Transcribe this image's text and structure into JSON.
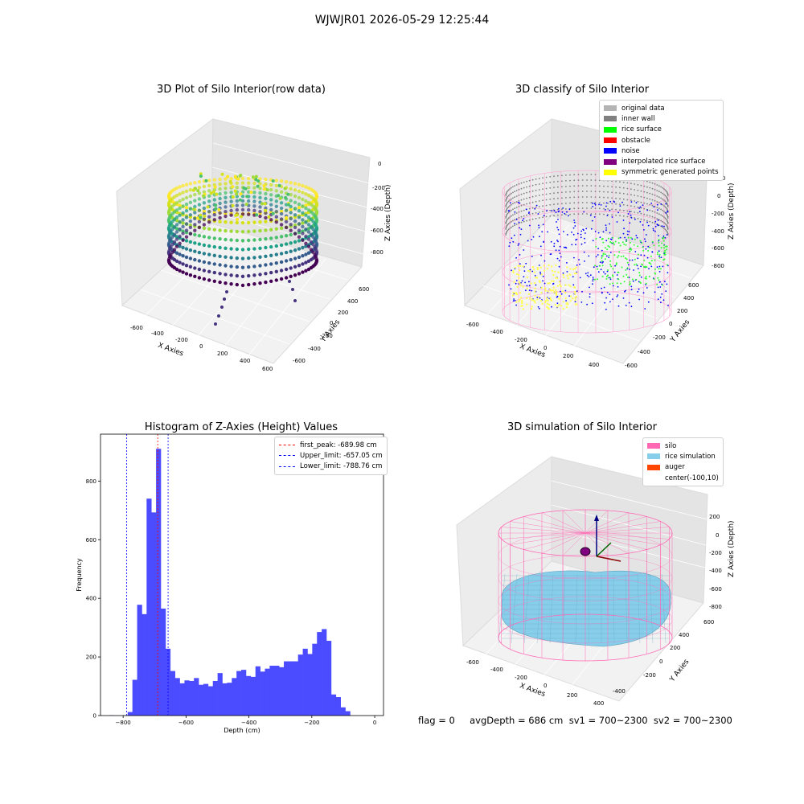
{
  "figure": {
    "suptitle": "WJWJR01 2026-05-29 12:25:44",
    "footer": "flag = 0     avgDepth = 686 cm  sv1 = 700~2300  sv2 = 700~2300"
  },
  "chart_data": [
    {
      "type": "scatter",
      "title": "3D Plot of Silo Interior(row data)",
      "xlabel": "X Axies",
      "ylabel": "Y Axies",
      "zlabel": "Z Axies (Depth)",
      "xticks": [
        "-600",
        "-400",
        "-200",
        "0",
        "200",
        "400",
        "600"
      ],
      "yticks": [
        "-600",
        "-400",
        "-200",
        "0",
        "200",
        "400",
        "600"
      ],
      "zticks": [
        "0",
        "-200",
        "-400",
        "-600",
        "-800"
      ],
      "colormap": "viridis"
    },
    {
      "type": "scatter",
      "title": "3D classify of Silo Interior",
      "xlabel": "X Axies",
      "ylabel": "Y Axies",
      "zlabel": "Z Axies (Depth)",
      "xticks": [
        "-600",
        "-400",
        "-200",
        "0",
        "200",
        "400"
      ],
      "yticks": [
        "-600",
        "-400",
        "-200",
        "0",
        "200",
        "400",
        "600"
      ],
      "zticks": [
        "200",
        "0",
        "-200",
        "-400",
        "-600",
        "-800"
      ],
      "legend": [
        {
          "label": "original data",
          "color": "#b4b4b4"
        },
        {
          "label": "inner wall",
          "color": "#808080"
        },
        {
          "label": "rice surface",
          "color": "#00ff00"
        },
        {
          "label": "obstacle",
          "color": "#ff0000"
        },
        {
          "label": "noise",
          "color": "#0000ff"
        },
        {
          "label": "interpolated rice surface",
          "color": "#800080"
        },
        {
          "label": "symmetric generated points",
          "color": "#ffff00"
        }
      ]
    },
    {
      "type": "bar",
      "title": "Histogram of Z-Axies (Height) Values",
      "xlabel": "Depth (cm)",
      "ylabel": "Frequency",
      "xlim": [
        -872,
        28
      ],
      "ylim": [
        0,
        960
      ],
      "xticks": [
        -800,
        -600,
        -400,
        -200,
        0
      ],
      "yticks": [
        0,
        200,
        400,
        600,
        800
      ],
      "bar_color": "#4b4bff",
      "bin_start": -845.8,
      "bin_width": 15.05,
      "values": [
        1,
        0,
        0,
        1,
        12,
        122,
        378,
        346,
        740,
        693,
        910,
        365,
        228,
        152,
        128,
        110,
        120,
        118,
        128,
        105,
        108,
        100,
        118,
        145,
        110,
        112,
        128,
        152,
        156,
        135,
        132,
        168,
        150,
        160,
        170,
        170,
        165,
        185,
        185,
        185,
        208,
        228,
        210,
        245,
        285,
        295,
        255,
        72,
        63,
        28,
        15
      ],
      "vlines": [
        {
          "label": "first_peak: -689.98 cm",
          "value": -689.98,
          "color": "#ff0000"
        },
        {
          "label": "Upper_limit: -657.05 cm",
          "value": -657.05,
          "color": "#0000ff"
        },
        {
          "label": "Lower_limit: -788.76 cm",
          "value": -788.76,
          "color": "#0000ff"
        }
      ]
    },
    {
      "type": "surface",
      "title": "3D simulation of Silo Interior",
      "xlabel": "X Axies",
      "ylabel": "Y Axies",
      "zlabel": "Z Axies (Depth)",
      "xticks": [
        "-600",
        "-400",
        "-200",
        "0",
        "200",
        "400"
      ],
      "yticks": [
        "-400",
        "-200",
        "0",
        "200",
        "400",
        "600"
      ],
      "zticks": [
        "200",
        "0",
        "-200",
        "-400",
        "-600",
        "-800"
      ],
      "legend": [
        {
          "label": "silo",
          "color": "#ff69b4"
        },
        {
          "label": "rice simulation",
          "color": "#87ceeb"
        },
        {
          "label": "auger",
          "color": "#ff4500"
        },
        {
          "label": "center(-100,10)",
          "color": "#ffffff"
        }
      ]
    }
  ]
}
